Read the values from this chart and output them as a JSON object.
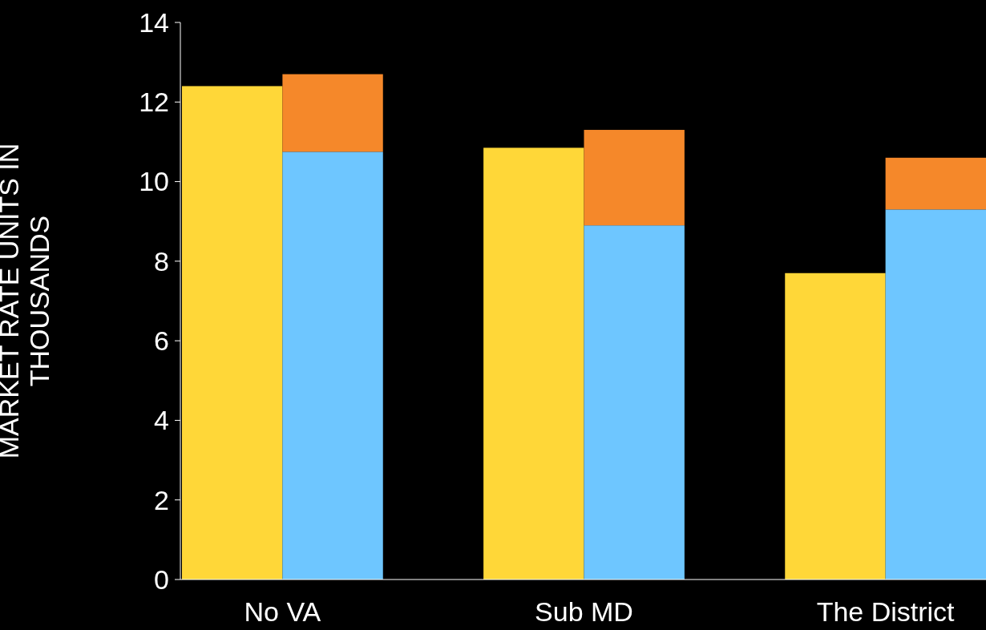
{
  "chart_data": {
    "type": "bar",
    "stacked": true,
    "ylabel": "MARKET RATE UNITS IN THOUSANDS",
    "categories": [
      "No VA",
      null,
      null,
      "Sub MD",
      null,
      null,
      "The District",
      null
    ],
    "series": [
      {
        "color": "#ffd738",
        "values": [
          12.4,
          null,
          null,
          10.85,
          null,
          null,
          7.7,
          null
        ]
      },
      {
        "color": "#6ec6ff",
        "values": [
          null,
          10.75,
          null,
          null,
          8.9,
          null,
          null,
          9.3
        ]
      },
      {
        "color": "#f5882a",
        "values": [
          null,
          1.95,
          null,
          null,
          2.4,
          null,
          null,
          1.3
        ]
      }
    ],
    "ylim": [
      0,
      14
    ],
    "yticks": [
      0,
      2,
      4,
      6,
      8,
      10,
      12,
      14
    ],
    "grid": false
  }
}
